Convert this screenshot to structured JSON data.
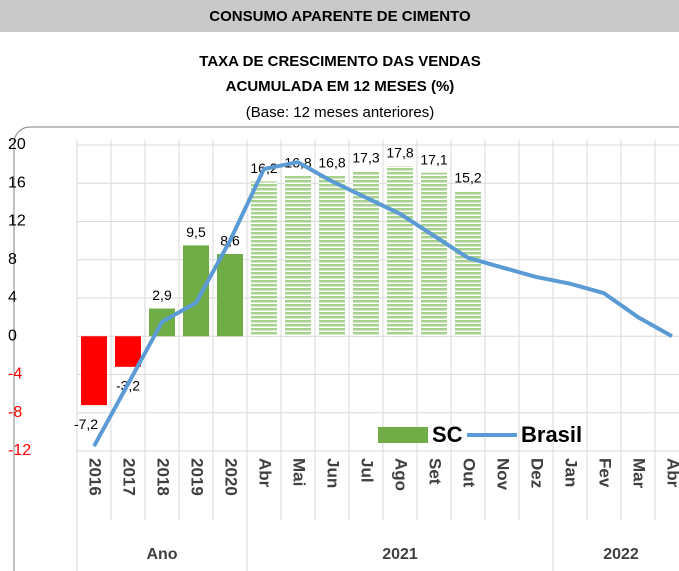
{
  "chart_data": {
    "type": "bar",
    "banner": "CONSUMO APARENTE DE CIMENTO",
    "title": [
      "TAXA DE CRESCIMENTO DAS VENDAS",
      "ACUMULADA EM 12 MESES (%)"
    ],
    "subtitle": "(Base: 12 meses anteriores)",
    "categories": [
      "2016",
      "2017",
      "2018",
      "2019",
      "2020",
      "Abr",
      "Mai",
      "Jun",
      "Jul",
      "Ago",
      "Set",
      "Out",
      "Nov",
      "Dez",
      "Jan",
      "Fev",
      "Mar",
      "Abr"
    ],
    "groups": [
      {
        "label": "Ano",
        "span": 5
      },
      {
        "label": "2021",
        "span": 9
      },
      {
        "label": "2022",
        "span": 4
      }
    ],
    "series": [
      {
        "name": "SC",
        "type": "bar",
        "color": "#70ad47",
        "negative_color": "#ff0000",
        "hatched": [
          false,
          false,
          false,
          false,
          false,
          true,
          true,
          true,
          true,
          true,
          true,
          true,
          false,
          false,
          false,
          false,
          false,
          false
        ],
        "values": [
          -7.2,
          -3.2,
          2.9,
          9.5,
          8.6,
          16.2,
          16.8,
          16.8,
          17.3,
          17.8,
          17.1,
          15.2,
          null,
          null,
          null,
          null,
          null,
          null
        ],
        "value_labels": [
          "-7,2",
          "-3,2",
          "2,9",
          "9,5",
          "8,6",
          "16,2",
          "16,8",
          "16,8",
          "17,3",
          "17,8",
          "17,1",
          "15,2",
          null,
          null,
          null,
          null,
          null,
          null
        ]
      },
      {
        "name": "Brasil",
        "type": "line",
        "color": "#5b9bd5",
        "values": [
          -11.5,
          -5,
          1.5,
          3.5,
          10,
          17.5,
          18.2,
          16.2,
          14.5,
          12.8,
          10.5,
          8.2,
          7.2,
          6.2,
          5.5,
          4.5,
          2,
          0
        ]
      }
    ],
    "ylim": [
      -12,
      20
    ],
    "yticks": [
      -12,
      -8,
      -4,
      0,
      4,
      8,
      12,
      16,
      20
    ],
    "negative_tick_color": "#ff0000",
    "grid": true,
    "legend": "lower right"
  }
}
